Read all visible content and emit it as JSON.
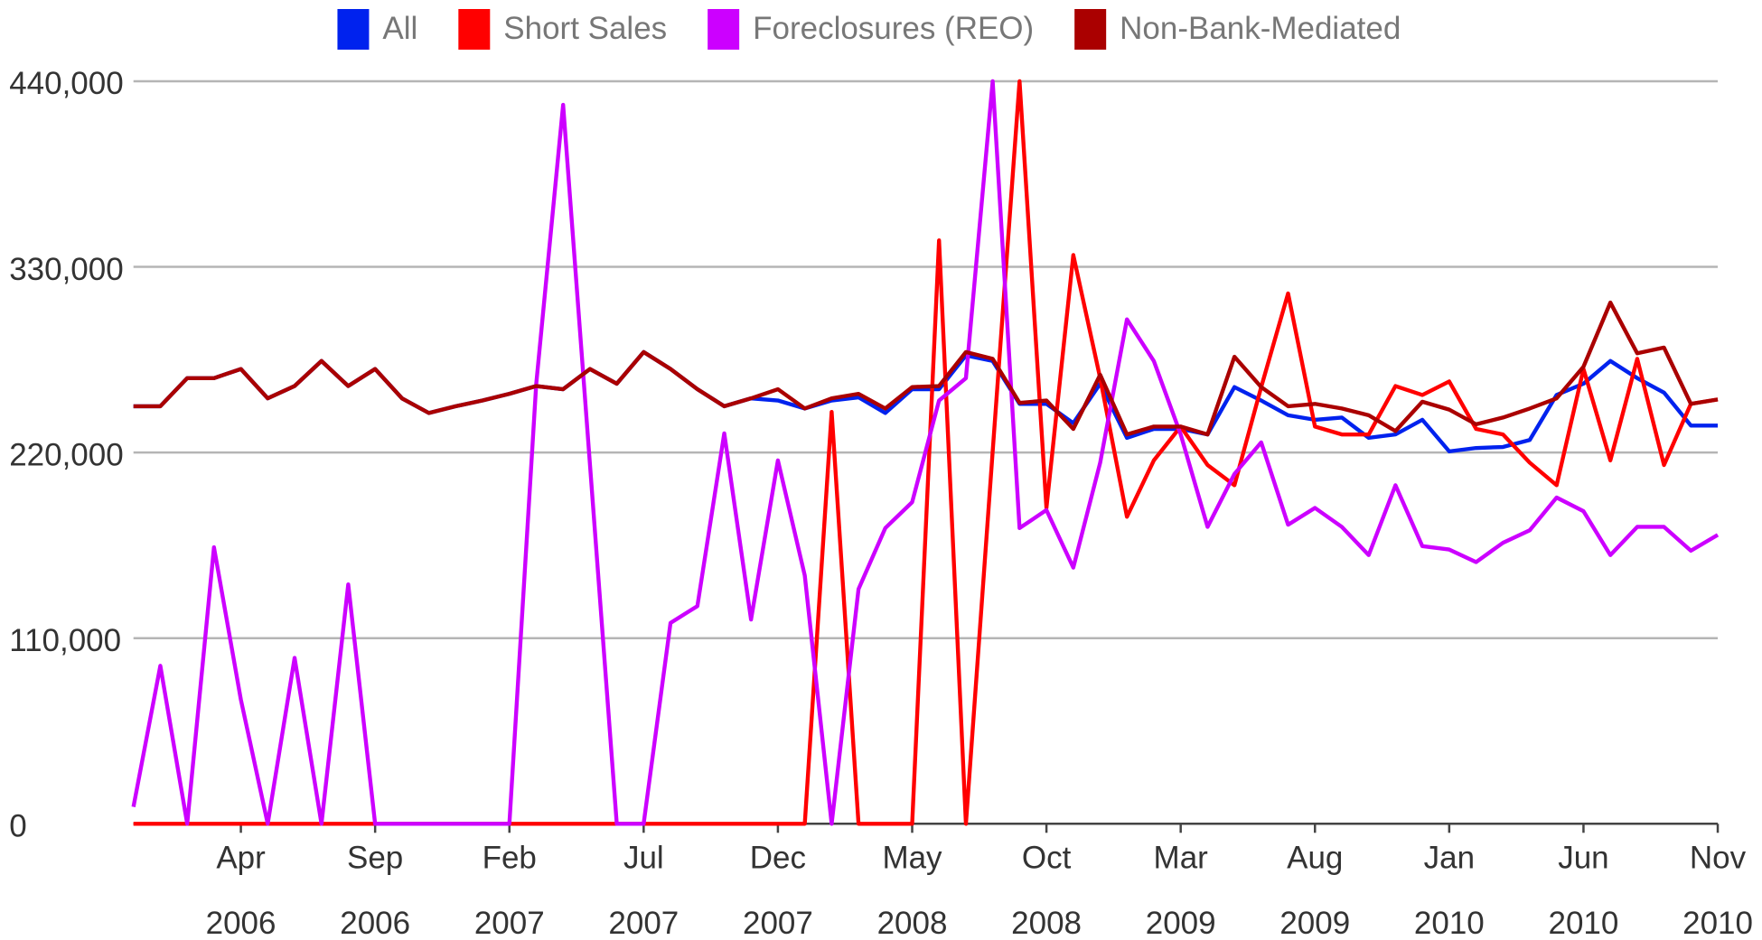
{
  "chart_data": {
    "type": "line",
    "categories": [
      null,
      null,
      null,
      null,
      [
        "Apr",
        "2006"
      ],
      null,
      null,
      null,
      null,
      [
        "Sep",
        "2006"
      ],
      null,
      null,
      null,
      null,
      [
        "Feb",
        "2007"
      ],
      null,
      null,
      null,
      null,
      [
        "Jul",
        "2007"
      ],
      null,
      null,
      null,
      null,
      [
        "Dec",
        "2007"
      ],
      null,
      null,
      null,
      null,
      [
        "May",
        "2008"
      ],
      null,
      null,
      null,
      null,
      [
        "Oct",
        "2008"
      ],
      null,
      null,
      null,
      null,
      [
        "Mar",
        "2009"
      ],
      null,
      null,
      null,
      null,
      [
        "Aug",
        "2009"
      ],
      null,
      null,
      null,
      null,
      [
        "Jan",
        "2010"
      ],
      null,
      null,
      null,
      null,
      [
        "Jun",
        "2010"
      ],
      null,
      null,
      null,
      null,
      [
        "Nov",
        "2010"
      ]
    ],
    "series": [
      {
        "name": "All",
        "color": "#0022ee",
        "values": [
          247400,
          247400,
          264100,
          264100,
          269500,
          252100,
          259400,
          274200,
          259400,
          269500,
          252100,
          243400,
          247400,
          250800,
          254800,
          259400,
          257500,
          269500,
          260800,
          279500,
          269500,
          257500,
          247400,
          252100,
          250800,
          246100,
          250800,
          252700,
          243400,
          257500,
          257500,
          277500,
          274200,
          248800,
          248800,
          237400,
          260800,
          228700,
          234000,
          234000,
          230700,
          258800,
          250800,
          242100,
          239400,
          240700,
          228700,
          230700,
          239400,
          220700,
          222700,
          223300,
          227400,
          254100,
          260800,
          274200,
          264100,
          255500,
          236000,
          236000
        ]
      },
      {
        "name": "Short Sales",
        "color": "#ff0000",
        "values": [
          0,
          0,
          0,
          0,
          0,
          0,
          0,
          0,
          0,
          0,
          0,
          0,
          0,
          0,
          0,
          0,
          0,
          0,
          0,
          0,
          0,
          0,
          0,
          0,
          0,
          0,
          244100,
          0,
          0,
          0,
          345700,
          0,
          220700,
          440000,
          187200,
          337000,
          264100,
          181900,
          215300,
          235400,
          212600,
          200600,
          258800,
          314300,
          235400,
          230700,
          230700,
          259400,
          254100,
          262100,
          234000,
          230700,
          214000,
          200600,
          269500,
          215300,
          275500,
          212600,
          248800,
          251400
        ]
      },
      {
        "name": "Foreclosures (REO)",
        "color": "#cc00ff",
        "values": [
          10000,
          93600,
          0,
          163800,
          73600,
          0,
          98300,
          0,
          141800,
          0,
          0,
          0,
          0,
          0,
          0,
          260800,
          426000,
          212600,
          0,
          0,
          119000,
          129000,
          231400,
          121000,
          215300,
          147100,
          0,
          139100,
          175200,
          190600,
          250800,
          264100,
          440000,
          175200,
          185900,
          151800,
          214000,
          298900,
          274200,
          230700,
          175900,
          207300,
          226000,
          177200,
          187200,
          175900,
          159200,
          200600,
          164500,
          162500,
          155100,
          166500,
          173900,
          193300,
          185200,
          159200,
          175900,
          175900,
          161800,
          171200
        ]
      },
      {
        "name": "Non-Bank-Mediated",
        "color": "#aa0000",
        "values": [
          247400,
          247400,
          264100,
          264100,
          269500,
          252100,
          259400,
          274200,
          259400,
          269500,
          252100,
          243400,
          247400,
          250800,
          254800,
          259400,
          257500,
          269500,
          260800,
          279500,
          269500,
          257500,
          247400,
          252100,
          257500,
          246100,
          252100,
          254800,
          246100,
          258800,
          259400,
          279500,
          275500,
          249400,
          250800,
          234000,
          266100,
          230700,
          235400,
          235400,
          230700,
          276800,
          258800,
          247400,
          248800,
          246100,
          242100,
          232700,
          250100,
          245400,
          236700,
          240700,
          246100,
          252100,
          270800,
          308900,
          278800,
          282200,
          248800,
          251400
        ]
      }
    ],
    "ylim": [
      0,
      440000
    ],
    "yticks": [
      0,
      {
        "value": 110000,
        "label": "110,000"
      },
      {
        "value": 220000,
        "label": "220,000"
      },
      {
        "value": 330000,
        "label": "330,000"
      },
      {
        "value": 440000,
        "label": "440,000"
      }
    ],
    "grid": true,
    "legend": "top"
  }
}
